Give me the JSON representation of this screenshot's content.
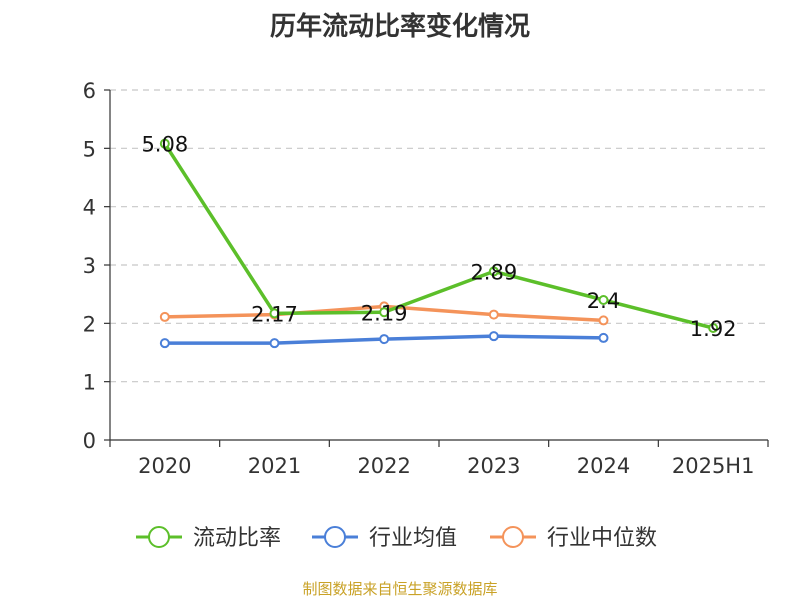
{
  "chart_data": {
    "type": "line",
    "title": "历年流动比率变化情况",
    "categories": [
      "2020",
      "2021",
      "2022",
      "2023",
      "2024",
      "2025H1"
    ],
    "ylim": [
      0,
      6
    ],
    "yticks": [
      0,
      1,
      2,
      3,
      4,
      5,
      6
    ],
    "grid": true,
    "legend_position": "bottom",
    "series": [
      {
        "name": "流动比率",
        "color": "#5cbf2a",
        "values": [
          5.08,
          2.17,
          2.19,
          2.89,
          2.4,
          1.92
        ],
        "labels": [
          "5.08",
          "2.17",
          "2.19",
          "2.89",
          "2.4",
          "1.92"
        ]
      },
      {
        "name": "行业均值",
        "color": "#4a7fd8",
        "values": [
          1.66,
          1.66,
          1.73,
          1.78,
          1.75,
          null
        ]
      },
      {
        "name": "行业中位数",
        "color": "#f4935a",
        "values": [
          2.11,
          2.15,
          2.29,
          2.15,
          2.05,
          null
        ]
      }
    ]
  },
  "source_note": "制图数据来自恒生聚源数据库"
}
